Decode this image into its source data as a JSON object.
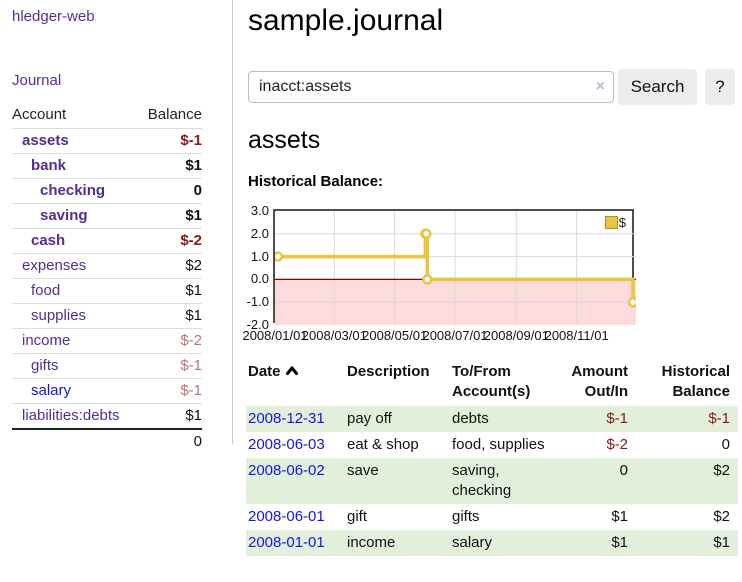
{
  "sidebar": {
    "app_title": "hledger-web",
    "journal_link": "Journal",
    "accounts": {
      "header_account": "Account",
      "header_balance": "Balance",
      "rows": [
        {
          "name": "assets",
          "balance": "$-1"
        },
        {
          "name": "bank",
          "balance": "$1"
        },
        {
          "name": "checking",
          "balance": "0"
        },
        {
          "name": "saving",
          "balance": "$1"
        },
        {
          "name": "cash",
          "balance": "$-2"
        },
        {
          "name": "expenses",
          "balance": "$2"
        },
        {
          "name": "food",
          "balance": "$1"
        },
        {
          "name": "supplies",
          "balance": "$1"
        },
        {
          "name": "income",
          "balance": "$-2"
        },
        {
          "name": "gifts",
          "balance": "$-1"
        },
        {
          "name": "salary",
          "balance": "$-1"
        },
        {
          "name": "liabilities:debts",
          "balance": "$1"
        }
      ],
      "total": "0"
    }
  },
  "main": {
    "title": "sample.journal",
    "search": {
      "value": "inacct:assets",
      "clear_label": "×",
      "search_button": "Search",
      "help_button": "?"
    },
    "heading": "assets",
    "chart_label": "Historical Balance:",
    "register": {
      "headers": {
        "date": "Date",
        "description": "Description",
        "tofrom": "To/From Account(s)",
        "amount": "Amount Out/In",
        "balance": "Historical Balance"
      },
      "rows": [
        {
          "date": "2008-12-31",
          "description": "pay off",
          "accounts": "debts",
          "amount": "$-1",
          "balance": "$-1"
        },
        {
          "date": "2008-06-03",
          "description": "eat & shop",
          "accounts": "food, supplies",
          "amount": "$-2",
          "balance": "0"
        },
        {
          "date": "2008-06-02",
          "description": "save",
          "accounts": "saving, checking",
          "amount": "0",
          "balance": "$2"
        },
        {
          "date": "2008-06-01",
          "description": "gift",
          "accounts": "gifts",
          "amount": "$1",
          "balance": "$2"
        },
        {
          "date": "2008-01-01",
          "description": "income",
          "accounts": "salary",
          "amount": "$1",
          "balance": "$1"
        }
      ]
    }
  },
  "colors": {
    "link_purple": "#552d90",
    "link_blue": "#1515e0",
    "negative_strong": "#8b1717",
    "negative_soft": "#bb7479",
    "row_green": "#e2efdb",
    "chart_line": "#e8c63f",
    "chart_negative_fill": "#fbdbdb",
    "zero_line": "#8b0000",
    "gridline": "#d8d8d8"
  },
  "chart_data": {
    "type": "line",
    "step": true,
    "title": "Historical Balance:",
    "x": [
      "2008-01-01",
      "2008-06-01",
      "2008-06-02",
      "2008-06-03",
      "2008-12-31"
    ],
    "series": [
      {
        "name": "$",
        "values": [
          1,
          2,
          2,
          0,
          -1
        ]
      }
    ],
    "xlim": [
      "2008-01-01",
      "2008-12-31"
    ],
    "ylim": [
      -2,
      3
    ],
    "yticks": [
      "3.0",
      "2.0",
      "1.0",
      "0.0",
      "-1.0",
      "-2.0"
    ],
    "xtick_labels": [
      "2008/01/01",
      "2008/03/01",
      "2008/05/01",
      "2008/07/01",
      "2008/09/01",
      "2008/11/01"
    ],
    "legend": {
      "label": "$",
      "position": "top-right"
    },
    "grid": true,
    "negative_region": true
  }
}
